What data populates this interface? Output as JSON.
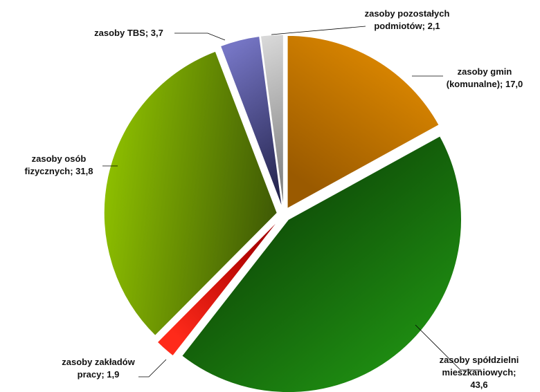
{
  "chart_data": {
    "type": "pie",
    "title": "",
    "slices": [
      {
        "key": "gminy",
        "label_lines": [
          "zasoby gmin",
          "(komunalne); 17,0"
        ],
        "value": 17.0,
        "color": "#e08a00",
        "color_dark": "#9a5a00"
      },
      {
        "key": "spoldzielnie",
        "label_lines": [
          "zasoby spółdzielni",
          "mieszkaniowych;",
          "43,6"
        ],
        "value": 43.6,
        "color": "#1f8f12",
        "color_dark": "#0b3d05"
      },
      {
        "key": "zaklady",
        "label_lines": [
          "zasoby zakładów",
          "pracy; 1,9"
        ],
        "value": 1.9,
        "color": "#ff2a1a",
        "color_dark": "#a80000"
      },
      {
        "key": "osoby",
        "label_lines": [
          "zasoby osób",
          "fizycznych; 31,8"
        ],
        "value": 31.8,
        "color": "#8ec000",
        "color_dark": "#3f5a05"
      },
      {
        "key": "tbs",
        "label_lines": [
          "zasoby TBS; 3,7"
        ],
        "value": 3.7,
        "color": "#7575c4",
        "color_dark": "#262650"
      },
      {
        "key": "pozostale",
        "label_lines": [
          "zasoby pozostałych",
          "podmiotów; 2,1"
        ],
        "value": 2.1,
        "color": "#d8d8d8",
        "color_dark": "#7a7a7a"
      }
    ]
  }
}
